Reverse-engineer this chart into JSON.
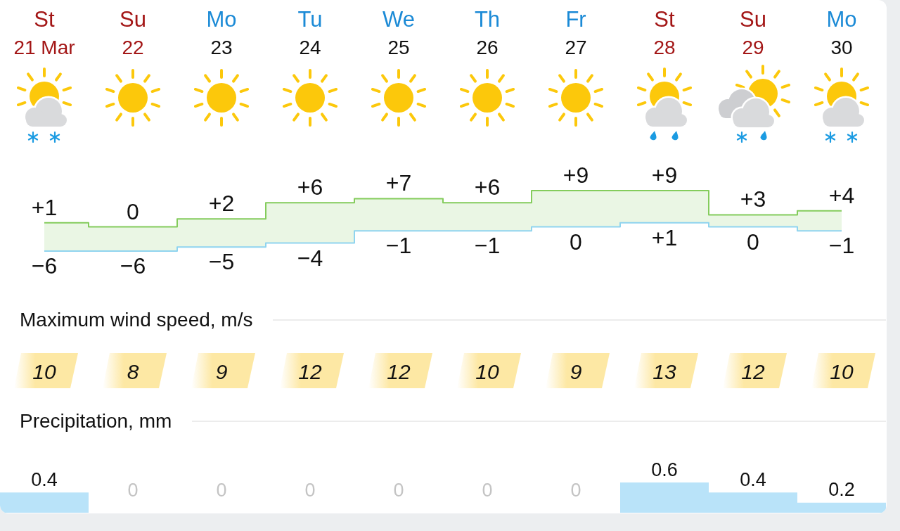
{
  "chart_data": [
    {
      "type": "step",
      "categories": [
        "St\n21 Mar",
        "Su\n22",
        "Mo\n23",
        "Tu\n24",
        "We\n25",
        "Th\n26",
        "Fr\n27",
        "St\n28",
        "Su\n29",
        "Mo\n30"
      ],
      "tick_labels": "x",
      "series": [
        {
          "color": "#84cc5c",
          "values": [
            1,
            0,
            2,
            6,
            7,
            6,
            9,
            9,
            3,
            4
          ],
          "value_labels": [
            "+1",
            "0",
            "+2",
            "+6",
            "+7",
            "+6",
            "+9",
            "+9",
            "+3",
            "+4"
          ],
          "lower": [
            -6,
            -6,
            -5,
            -4,
            -1,
            -1,
            0,
            1,
            0,
            -1
          ],
          "upper": [
            1,
            0,
            2,
            6,
            7,
            6,
            9,
            9,
            3,
            4
          ]
        },
        {
          "color": "#8fd4ef",
          "values": [
            -6,
            -6,
            -5,
            -4,
            -1,
            -1,
            0,
            1,
            0,
            -1
          ],
          "value_labels": [
            "−6",
            "−6",
            "−5",
            "−4",
            "−1",
            "−1",
            "0",
            "+1",
            "0",
            "−1"
          ]
        }
      ]
    },
    {
      "type": "other",
      "title": "Maximum wind speed, m/s",
      "values": [
        10,
        8,
        9,
        12,
        12,
        10,
        9,
        13,
        12,
        10
      ],
      "color": "#fde8a4",
      "data_labels": true
    },
    {
      "type": "bar",
      "title": "Precipitation, mm",
      "categories": [
        null,
        null,
        null,
        null,
        null,
        null,
        null,
        null,
        null,
        null
      ],
      "values": [
        0.4,
        0,
        0,
        0,
        0,
        0,
        0,
        0.6,
        0.4,
        0.2
      ],
      "color": "#b9e3f9",
      "data_labels": true
    }
  ]
}
